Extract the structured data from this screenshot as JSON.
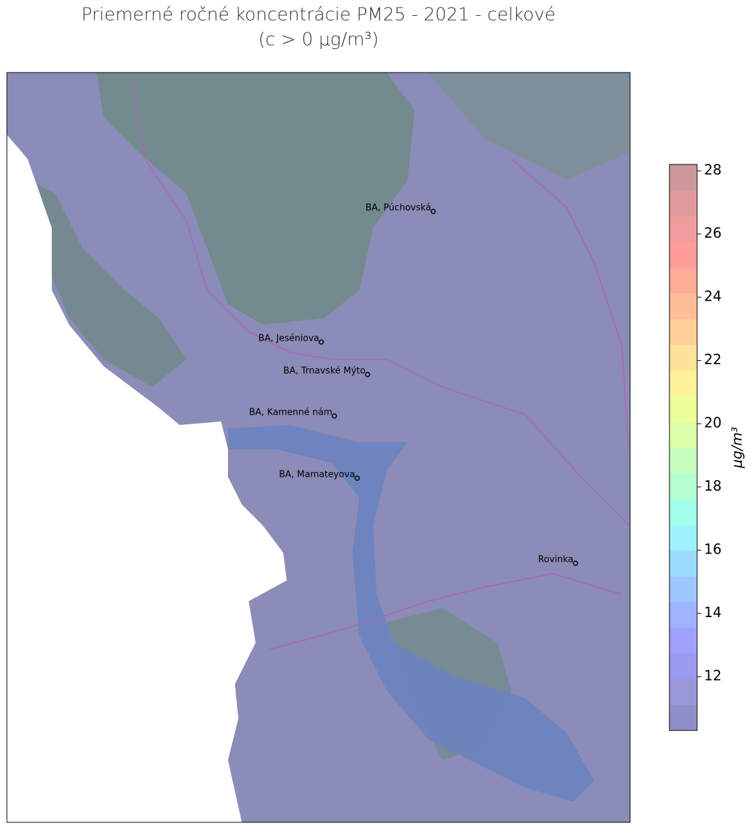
{
  "title": [
    "Priemerné ročné koncentrácie PM25 - 2021 - celkové",
    "(c > 0 μg/m³)"
  ],
  "stations": [
    "BA, Púchovská",
    "BA, Jeséniova",
    "BA, Trnavské Mýto",
    "BA, Kamenné nám",
    "BA, Mamateyova",
    "Rovinka"
  ],
  "colorbar": {
    "label": "μg/m³",
    "lim": [
      10.3,
      28.2
    ],
    "ticks": [
      12,
      14,
      16,
      18,
      20,
      22,
      24,
      26,
      28
    ],
    "colors": [
      "#9090c8",
      "#9898d8",
      "#9a9aee",
      "#a0a0ff",
      "#a0b2ff",
      "#9ec6ff",
      "#9cdcff",
      "#9ef2ff",
      "#a2ffe8",
      "#b6ffd2",
      "#c8ffbe",
      "#dcffaa",
      "#eeff9a",
      "#fff29a",
      "#ffe29a",
      "#ffcf98",
      "#ffbe98",
      "#ffac98",
      "#ff9c98",
      "#f09c9c",
      "#e09c9c",
      "#cc9a9a"
    ]
  }
}
